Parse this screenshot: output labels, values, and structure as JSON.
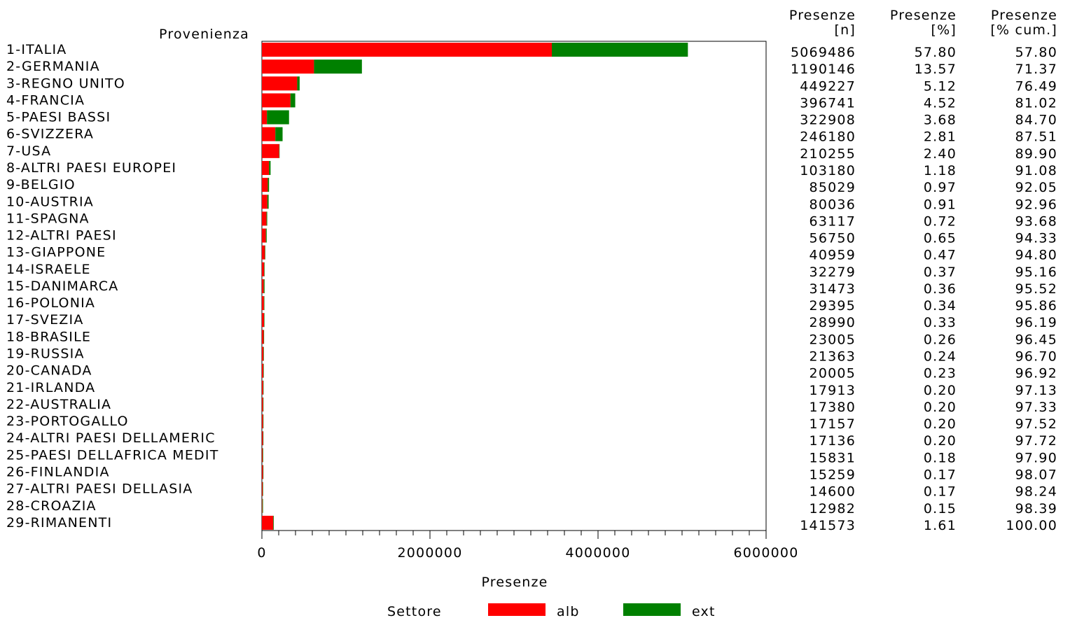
{
  "chart_data": {
    "type": "bar",
    "orientation": "horizontal",
    "stacked": true,
    "ylabel": "Provenienza",
    "xlabel": "Presenze",
    "xlim": [
      0,
      6000000
    ],
    "xticks": [
      0,
      2000000,
      4000000,
      6000000
    ],
    "xtick_labels": [
      "0",
      "2000000",
      "4000000",
      "6000000"
    ],
    "grid": false,
    "legend": {
      "title": "Settore",
      "position": "bottom",
      "items": [
        {
          "name": "alb",
          "color": "#ff0000"
        },
        {
          "name": "ext",
          "color": "#008000"
        }
      ]
    },
    "categories": [
      "1-ITALIA",
      "2-GERMANIA",
      "3-REGNO UNITO",
      "4-FRANCIA",
      "5-PAESI BASSI",
      "6-SVIZZERA",
      "7-USA",
      "8-ALTRI PAESI EUROPEI",
      "9-BELGIO",
      "10-AUSTRIA",
      "11-SPAGNA",
      "12-ALTRI PAESI",
      "13-GIAPPONE",
      "14-ISRAELE",
      "15-DANIMARCA",
      "16-POLONIA",
      "17-SVEZIA",
      "18-BRASILE",
      "19-RUSSIA",
      "20-CANADA",
      "21-IRLANDA",
      "22-AUSTRALIA",
      "23-PORTOGALLO",
      "24-ALTRI PAESI DELLAMERIC",
      "25-PAESI DELLAFRICA MEDIT",
      "26-FINLANDIA",
      "27-ALTRI PAESI DELLASIA",
      "28-CROAZIA",
      "29-RIMANENTI"
    ],
    "series": [
      {
        "name": "alb",
        "color": "#ff0000",
        "values": [
          3450000,
          620000,
          420000,
          340000,
          60000,
          160000,
          205000,
          85000,
          70000,
          65000,
          55000,
          47000,
          36000,
          27000,
          22000,
          24000,
          25000,
          21000,
          19000,
          17000,
          15000,
          14000,
          14000,
          13000,
          10000,
          13000,
          10000,
          6000,
          135000
        ]
      },
      {
        "name": "ext",
        "color": "#008000",
        "values": [
          1619486,
          570146,
          29227,
          56741,
          262908,
          86180,
          5255,
          18180,
          15029,
          15036,
          8117,
          9750,
          4959,
          5279,
          9473,
          5395,
          3990,
          2005,
          2363,
          3005,
          2913,
          3380,
          3157,
          4136,
          5831,
          2259,
          4600,
          6982,
          6573
        ]
      }
    ],
    "table": {
      "headers": [
        {
          "line1": "Presenze",
          "line2": "[n]"
        },
        {
          "line1": "Presenze",
          "line2": "[%]"
        },
        {
          "line1": "Presenze",
          "line2": "[% cum.]"
        }
      ],
      "rows": [
        [
          "5069486",
          "57.80",
          "57.80"
        ],
        [
          "1190146",
          "13.57",
          "71.37"
        ],
        [
          "449227",
          "5.12",
          "76.49"
        ],
        [
          "396741",
          "4.52",
          "81.02"
        ],
        [
          "322908",
          "3.68",
          "84.70"
        ],
        [
          "246180",
          "2.81",
          "87.51"
        ],
        [
          "210255",
          "2.40",
          "89.90"
        ],
        [
          "103180",
          "1.18",
          "91.08"
        ],
        [
          "85029",
          "0.97",
          "92.05"
        ],
        [
          "80036",
          "0.91",
          "92.96"
        ],
        [
          "63117",
          "0.72",
          "93.68"
        ],
        [
          "56750",
          "0.65",
          "94.33"
        ],
        [
          "40959",
          "0.47",
          "94.80"
        ],
        [
          "32279",
          "0.37",
          "95.16"
        ],
        [
          "31473",
          "0.36",
          "95.52"
        ],
        [
          "29395",
          "0.34",
          "95.86"
        ],
        [
          "28990",
          "0.33",
          "96.19"
        ],
        [
          "23005",
          "0.26",
          "96.45"
        ],
        [
          "21363",
          "0.24",
          "96.70"
        ],
        [
          "20005",
          "0.23",
          "96.92"
        ],
        [
          "17913",
          "0.20",
          "97.13"
        ],
        [
          "17380",
          "0.20",
          "97.33"
        ],
        [
          "17157",
          "0.20",
          "97.52"
        ],
        [
          "17136",
          "0.20",
          "97.72"
        ],
        [
          "15831",
          "0.18",
          "97.90"
        ],
        [
          "15259",
          "0.17",
          "98.07"
        ],
        [
          "14600",
          "0.17",
          "98.24"
        ],
        [
          "12982",
          "0.15",
          "98.39"
        ],
        [
          "141573",
          "1.61",
          "100.00"
        ]
      ]
    }
  }
}
